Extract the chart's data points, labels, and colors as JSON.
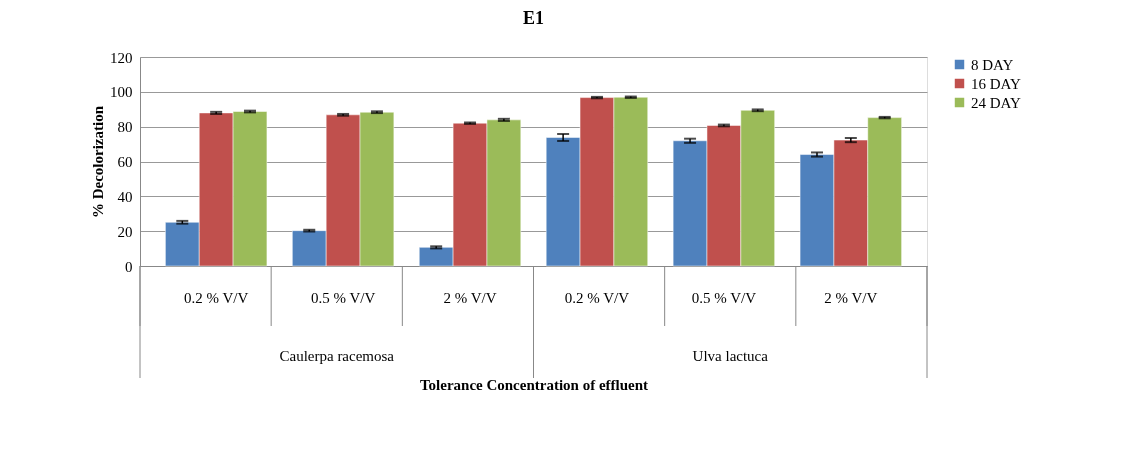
{
  "chart_data": {
    "type": "bar",
    "title": "E1",
    "xlabel": "Tolerance Concentration of effluent",
    "ylabel": "% Decolorization",
    "categories": [
      "0.2 % V/V",
      "0.5 % V/V",
      "2 % V/V",
      "0.2 % V/V",
      "0.5 % V/V",
      "2 % V/V"
    ],
    "annotations": [
      "Caulerpa racemosa",
      "Ulva lactuca"
    ],
    "series": [
      {
        "name": "8 DAY",
        "color": "#4f81bd",
        "values": [
          25.1,
          20.3,
          10.7,
          73.8,
          71.9,
          64.0
        ],
        "errors": [
          0.8,
          0.5,
          0.6,
          2.0,
          1.2,
          1.2
        ]
      },
      {
        "name": "16 DAY",
        "color": "#c0504d",
        "values": [
          87.9,
          86.8,
          82.0,
          96.7,
          80.7,
          72.3
        ],
        "errors": [
          0.6,
          0.5,
          0.4,
          0.4,
          0.5,
          1.2
        ]
      },
      {
        "name": "24 DAY",
        "color": "#9bbb59",
        "values": [
          88.7,
          88.3,
          83.9,
          96.9,
          89.4,
          85.2
        ],
        "errors": [
          0.5,
          0.5,
          0.6,
          0.4,
          0.5,
          0.4
        ]
      }
    ],
    "ylim": [
      0,
      120
    ],
    "yticks": [
      0,
      20,
      40,
      60,
      80,
      100,
      120
    ],
    "grid": "y",
    "legend": "right"
  }
}
